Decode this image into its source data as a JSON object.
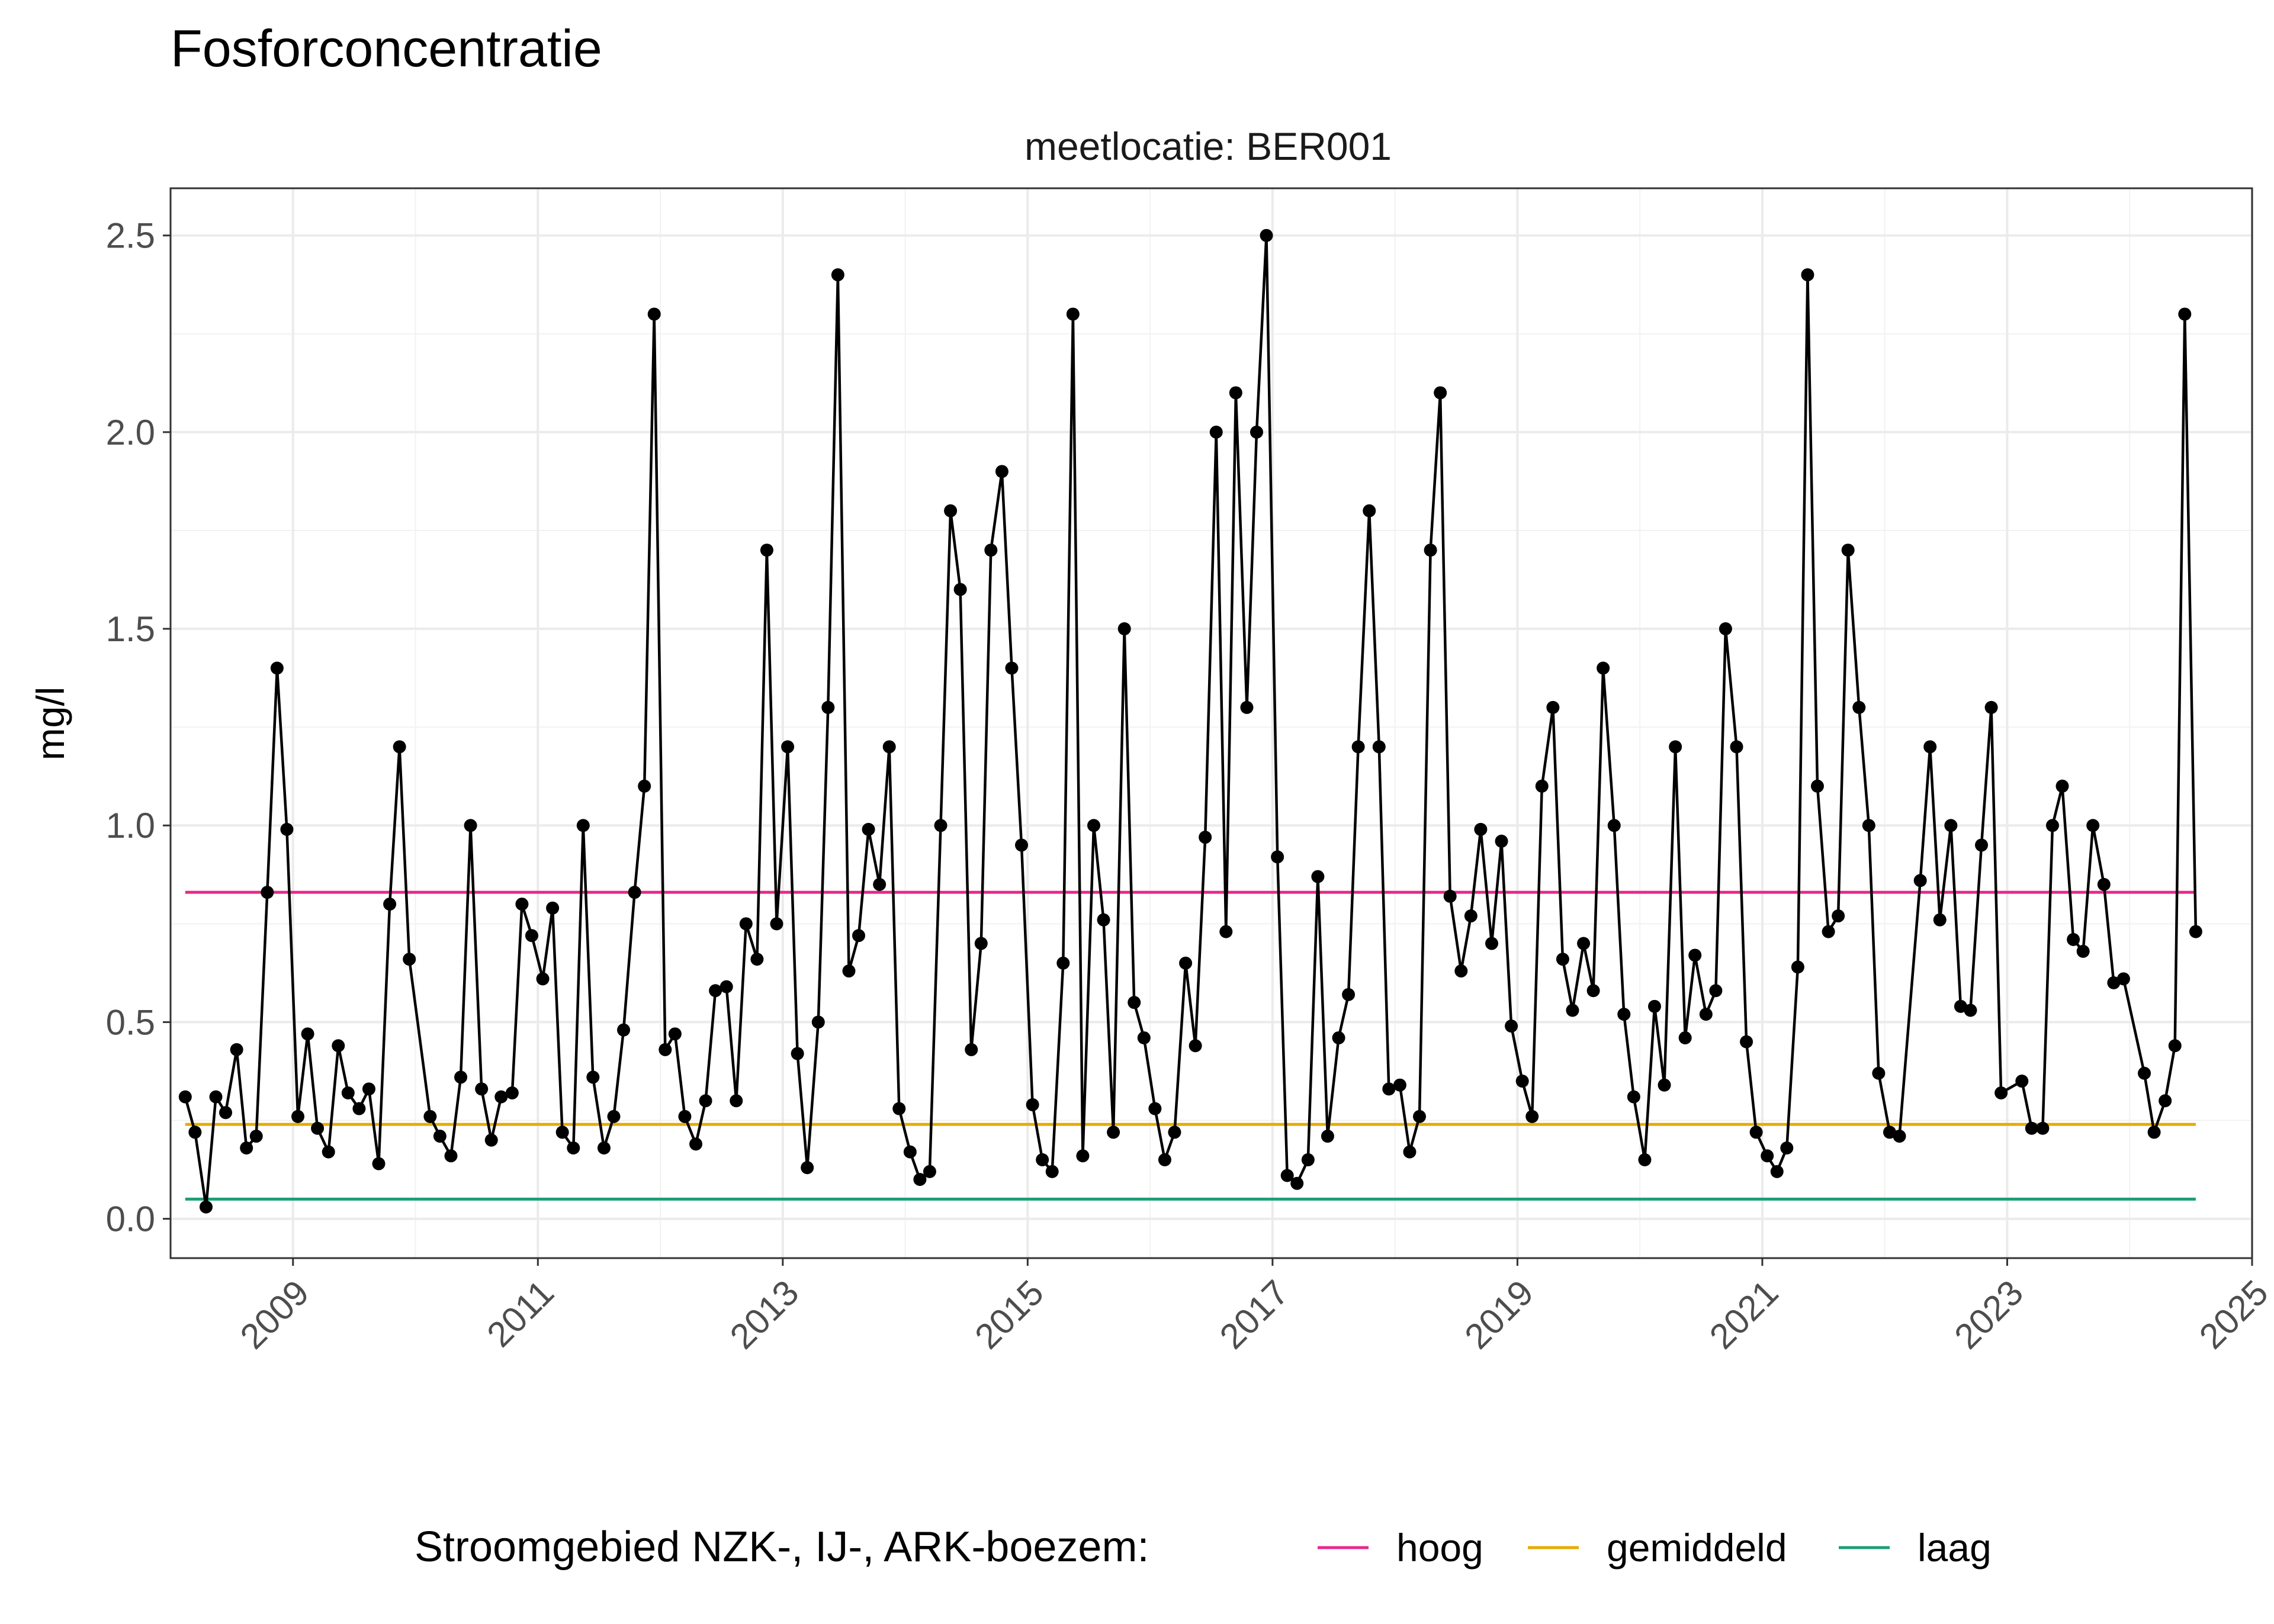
{
  "chart_data": {
    "type": "line",
    "title": "Fosforconcentratie",
    "subtitle": "meetlocatie: BER001",
    "xlabel": "",
    "ylabel": "mg/l",
    "xlim": [
      2008.0,
      2025.0
    ],
    "ylim": [
      -0.1,
      2.62
    ],
    "x_ticks": [
      2009,
      2011,
      2013,
      2015,
      2017,
      2019,
      2021,
      2023,
      2025
    ],
    "y_ticks": [
      0.0,
      0.5,
      1.0,
      1.5,
      2.0,
      2.5
    ],
    "y_tick_labels": [
      "0.0",
      "0.5",
      "1.0",
      "1.5",
      "2.0",
      "2.5"
    ],
    "grid": true,
    "legend_placement": "bottom",
    "legend_title": "Stroomgebied NZK-, IJ-, ARK-boezem:",
    "reference_lines": [
      {
        "name": "hoog",
        "value": 0.83,
        "color": "#e7298a"
      },
      {
        "name": "gemiddeld",
        "value": 0.24,
        "color": "#e6ab02"
      },
      {
        "name": "laag",
        "value": 0.05,
        "color": "#1b9e77"
      }
    ],
    "series": [
      {
        "color": "#000000",
        "x": [
          2008.12,
          2008.2,
          2008.29,
          2008.37,
          2008.45,
          2008.54,
          2008.62,
          2008.7,
          2008.79,
          2008.87,
          2008.95,
          2009.04,
          2009.12,
          2009.2,
          2009.29,
          2009.37,
          2009.45,
          2009.54,
          2009.62,
          2009.7,
          2009.79,
          2009.87,
          2009.95,
          2010.12,
          2010.2,
          2010.29,
          2010.37,
          2010.45,
          2010.54,
          2010.62,
          2010.7,
          2010.79,
          2010.87,
          2010.95,
          2011.04,
          2011.12,
          2011.2,
          2011.29,
          2011.37,
          2011.45,
          2011.54,
          2011.62,
          2011.7,
          2011.79,
          2011.87,
          2011.95,
          2012.04,
          2012.12,
          2012.2,
          2012.29,
          2012.37,
          2012.45,
          2012.54,
          2012.62,
          2012.7,
          2012.79,
          2012.87,
          2012.95,
          2013.04,
          2013.12,
          2013.2,
          2013.29,
          2013.37,
          2013.45,
          2013.54,
          2013.62,
          2013.7,
          2013.79,
          2013.87,
          2013.95,
          2014.04,
          2014.12,
          2014.2,
          2014.29,
          2014.37,
          2014.45,
          2014.54,
          2014.62,
          2014.7,
          2014.79,
          2014.87,
          2014.95,
          2015.04,
          2015.12,
          2015.2,
          2015.29,
          2015.37,
          2015.45,
          2015.54,
          2015.62,
          2015.7,
          2015.79,
          2015.87,
          2015.95,
          2016.04,
          2016.12,
          2016.2,
          2016.29,
          2016.37,
          2016.45,
          2016.54,
          2016.62,
          2016.7,
          2016.79,
          2016.87,
          2016.95,
          2017.04,
          2017.12,
          2017.2,
          2017.29,
          2017.37,
          2017.45,
          2017.54,
          2017.62,
          2017.7,
          2017.79,
          2017.87,
          2017.95,
          2018.04,
          2018.12,
          2018.2,
          2018.29,
          2018.37,
          2018.45,
          2018.54,
          2018.62,
          2018.7,
          2018.79,
          2018.87,
          2018.95,
          2019.04,
          2019.12,
          2019.2,
          2019.29,
          2019.37,
          2019.45,
          2019.54,
          2019.62,
          2019.7,
          2019.79,
          2019.87,
          2019.95,
          2020.04,
          2020.12,
          2020.2,
          2020.29,
          2020.37,
          2020.45,
          2020.54,
          2020.62,
          2020.7,
          2020.79,
          2020.87,
          2020.95,
          2021.04,
          2021.12,
          2021.2,
          2021.29,
          2021.37,
          2021.45,
          2021.54,
          2021.62,
          2021.7,
          2021.79,
          2021.87,
          2021.95,
          2022.04,
          2022.12,
          2022.29,
          2022.37,
          2022.45,
          2022.54,
          2022.62,
          2022.7,
          2022.79,
          2022.87,
          2022.95,
          2023.12,
          2023.2,
          2023.29,
          2023.37,
          2023.45,
          2023.54,
          2023.62,
          2023.7,
          2023.79,
          2023.87,
          2023.95,
          2024.12,
          2024.2,
          2024.29,
          2024.37,
          2024.45,
          2024.54
        ],
        "y": [
          0.31,
          0.22,
          0.03,
          0.31,
          0.27,
          0.43,
          0.18,
          0.21,
          0.83,
          1.4,
          0.99,
          0.26,
          0.47,
          0.23,
          0.17,
          0.44,
          0.32,
          0.28,
          0.33,
          0.14,
          0.8,
          1.2,
          0.66,
          0.26,
          0.21,
          0.16,
          0.36,
          1.0,
          0.33,
          0.2,
          0.31,
          0.32,
          0.8,
          0.72,
          0.61,
          0.79,
          0.22,
          0.18,
          1.0,
          0.36,
          0.18,
          0.26,
          0.48,
          0.83,
          1.1,
          2.3,
          0.43,
          0.47,
          0.26,
          0.19,
          0.3,
          0.58,
          0.59,
          0.3,
          0.75,
          0.66,
          1.7,
          0.75,
          1.2,
          0.42,
          0.13,
          0.5,
          1.3,
          2.4,
          0.63,
          0.72,
          0.99,
          0.85,
          1.2,
          0.28,
          0.17,
          0.1,
          0.12,
          1.0,
          1.8,
          1.6,
          0.43,
          0.7,
          1.7,
          1.9,
          1.4,
          0.95,
          0.29,
          0.15,
          0.12,
          0.65,
          2.3,
          0.16,
          1.0,
          0.76,
          0.22,
          1.5,
          0.55,
          0.46,
          0.28,
          0.15,
          0.22,
          0.65,
          0.44,
          0.97,
          2.0,
          0.73,
          2.1,
          1.3,
          2.0,
          2.5,
          0.92,
          0.11,
          0.09,
          0.15,
          0.87,
          0.21,
          0.46,
          0.57,
          1.2,
          1.8,
          1.2,
          0.33,
          0.34,
          0.17,
          0.26,
          1.7,
          2.1,
          0.82,
          0.63,
          0.77,
          0.99,
          0.7,
          0.96,
          0.49,
          0.35,
          0.26,
          1.1,
          1.3,
          0.66,
          0.53,
          0.7,
          0.58,
          1.4,
          1.0,
          0.52,
          0.31,
          0.15,
          0.54,
          0.34,
          1.2,
          0.46,
          0.67,
          0.52,
          0.58,
          1.5,
          1.2,
          0.45,
          0.22,
          0.16,
          0.12,
          0.18,
          0.64,
          2.4,
          1.1,
          0.73,
          0.77,
          1.7,
          1.3,
          1.0,
          0.37,
          0.22,
          0.21,
          0.86,
          1.2,
          0.76,
          1.0,
          0.54,
          0.53,
          0.95,
          1.3,
          0.32,
          0.35,
          0.23,
          0.23,
          1.0,
          1.1,
          0.71,
          0.68,
          1.0,
          0.85,
          0.6,
          0.61,
          0.37,
          0.22,
          0.3,
          0.44,
          2.3,
          0.73
        ]
      }
    ]
  }
}
